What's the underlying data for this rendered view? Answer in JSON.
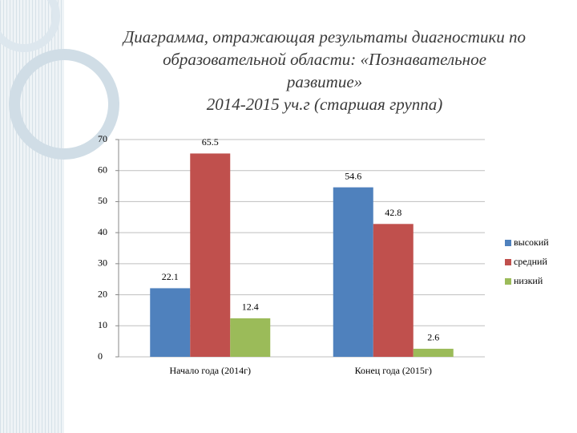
{
  "chart_data": {
    "type": "bar",
    "title": [
      "Диаграмма, отражающая результаты диагностики по",
      "образовательной области: «Познавательное",
      "развитие»",
      "2014-2015 уч.г (старшая группа)"
    ],
    "categories": [
      "Начало года (2014г)",
      "Конец года (2015г)"
    ],
    "series": [
      {
        "name": "высокий",
        "color": "#4f81bd",
        "values": [
          22.1,
          54.6
        ]
      },
      {
        "name": "средний",
        "color": "#c0504d",
        "values": [
          65.5,
          42.8
        ]
      },
      {
        "name": "низкий",
        "color": "#9bbb59",
        "values": [
          12.4,
          2.6
        ]
      }
    ],
    "ylim": [
      0,
      70
    ],
    "yticks": [
      0,
      10,
      20,
      30,
      40,
      50,
      60,
      70
    ],
    "grid": true,
    "legend": "right"
  }
}
